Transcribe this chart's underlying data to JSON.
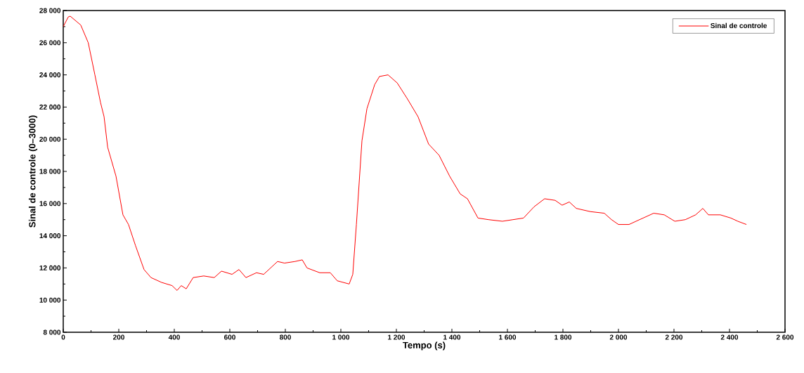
{
  "chart_data": {
    "type": "line",
    "xlabel": "Tempo (s)",
    "ylabel": "Sinal de controle (0–3000)",
    "xlim": [
      0,
      2600
    ],
    "ylim": [
      8000,
      28000
    ],
    "xticks": [
      0,
      200,
      400,
      600,
      800,
      {
        "value": 1000,
        "label": "1 000"
      },
      {
        "value": 1200,
        "label": "1 200"
      },
      {
        "value": 1400,
        "label": "1 400"
      },
      {
        "value": 1600,
        "label": "1 600"
      },
      {
        "value": 1800,
        "label": "1 800"
      },
      {
        "value": 2000,
        "label": "2 000"
      },
      {
        "value": 2200,
        "label": "2 200"
      },
      {
        "value": 2400,
        "label": "2 400"
      },
      {
        "value": 2600,
        "label": "2 600"
      }
    ],
    "yticks": [
      {
        "value": 8000,
        "label": "8 000"
      },
      {
        "value": 10000,
        "label": "10 000"
      },
      {
        "value": 12000,
        "label": "12 000"
      },
      {
        "value": 14000,
        "label": "14 000"
      },
      {
        "value": 16000,
        "label": "16 000"
      },
      {
        "value": 18000,
        "label": "18 000"
      },
      {
        "value": 20000,
        "label": "20 000"
      },
      {
        "value": 22000,
        "label": "22 000"
      },
      {
        "value": 24000,
        "label": "24 000"
      },
      {
        "value": 26000,
        "label": "26 000"
      },
      {
        "value": 28000,
        "label": "28 000"
      }
    ],
    "grid": false,
    "legend": "top right",
    "marker": "none",
    "line_style": "solid",
    "series": [
      {
        "name": "Sinal de controle",
        "color": "#ff0000",
        "x": [
          0,
          18,
          25,
          63,
          90,
          114,
          134,
          147,
          160,
          190,
          215,
          235,
          260,
          291,
          316,
          354,
          392,
          410,
          425,
          443,
          468,
          506,
          544,
          570,
          608,
          633,
          658,
          696,
          722,
          747,
          772,
          797,
          835,
          861,
          878,
          924,
          962,
          987,
          1030,
          1043,
          1056,
          1076,
          1094,
          1122,
          1139,
          1170,
          1203,
          1240,
          1278,
          1316,
          1354,
          1392,
          1430,
          1456,
          1494,
          1532,
          1582,
          1620,
          1658,
          1696,
          1734,
          1772,
          1797,
          1823,
          1848,
          1899,
          1949,
          1975,
          2000,
          2038,
          2076,
          2127,
          2165,
          2203,
          2241,
          2278,
          2304,
          2324,
          2367,
          2405,
          2430,
          2461
        ],
        "values": [
          27000,
          27600,
          27650,
          27100,
          26000,
          24000,
          22300,
          21400,
          19500,
          17700,
          15300,
          14700,
          13400,
          11900,
          11400,
          11100,
          10900,
          10600,
          10900,
          10700,
          11400,
          11500,
          11400,
          11800,
          11600,
          11900,
          11400,
          11700,
          11600,
          12000,
          12400,
          12300,
          12400,
          12500,
          12000,
          11700,
          11700,
          11200,
          11000,
          11600,
          14700,
          19900,
          21900,
          23400,
          23900,
          24000,
          23500,
          22500,
          21400,
          19700,
          19000,
          17700,
          16600,
          16300,
          15100,
          15000,
          14900,
          15000,
          15100,
          15800,
          16300,
          16200,
          15900,
          16100,
          15700,
          15500,
          15400,
          15000,
          14700,
          14700,
          15000,
          15400,
          15300,
          14900,
          15000,
          15300,
          15700,
          15300,
          15300,
          15100,
          14900,
          14700
        ]
      }
    ]
  }
}
